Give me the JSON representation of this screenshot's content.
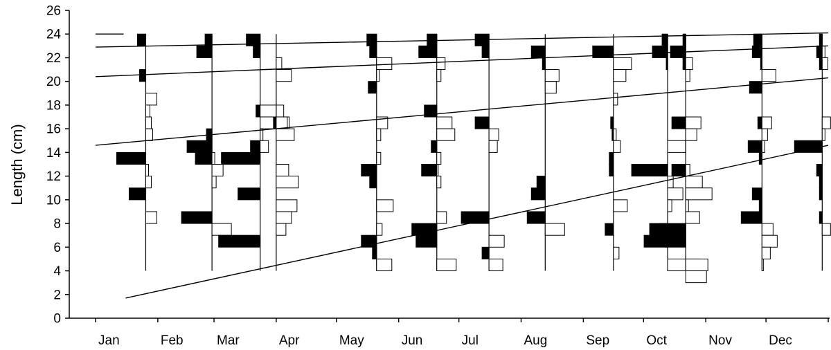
{
  "chart_data": {
    "type": "bar",
    "description_of_bars": "length-frequency histograms; black bars left of each sample baseline, white bars right",
    "ylabel": "Length (cm)",
    "xlabel": "",
    "ylim": [
      0,
      26
    ],
    "yticks": [
      "0",
      "2",
      "4",
      "6",
      "8",
      "10",
      "12",
      "14",
      "16",
      "18",
      "20",
      "22",
      "24",
      "26"
    ],
    "months": [
      "Jan",
      "Feb",
      "Mar",
      "Apr",
      "May",
      "Jun",
      "Jul",
      "Aug",
      "Sep",
      "Oct",
      "Nov",
      "Dec"
    ],
    "colors": {
      "filled_bars": "#000000",
      "open_bars": "#ffffff",
      "lines": "#000000"
    },
    "samples": [
      {
        "day": 25,
        "black": [
          [
            23.5,
            12
          ],
          [
            20.5,
            9
          ],
          [
            13.5,
            42
          ],
          [
            10.5,
            24
          ]
        ],
        "white": [
          [
            18.5,
            16
          ],
          [
            17.5,
            6
          ],
          [
            16.5,
            8
          ],
          [
            15.5,
            10
          ],
          [
            12.5,
            4
          ],
          [
            11.5,
            8
          ],
          [
            8.5,
            16
          ]
        ]
      },
      {
        "day": 58,
        "black": [
          [
            23.5,
            10
          ],
          [
            22.5,
            22
          ],
          [
            15.5,
            8
          ],
          [
            14.5,
            36
          ],
          [
            13.5,
            24
          ],
          [
            8.5,
            44
          ]
        ],
        "white": [
          [
            13.5,
            4
          ],
          [
            12.5,
            16
          ],
          [
            11.5,
            6
          ],
          [
            7.5,
            28
          ]
        ]
      },
      {
        "day": 82,
        "black": [
          [
            23.5,
            20
          ],
          [
            22.5,
            10
          ],
          [
            17.5,
            6
          ],
          [
            14.5,
            14
          ],
          [
            13.5,
            56
          ],
          [
            10.5,
            32
          ],
          [
            6.5,
            60
          ]
        ],
        "white": [
          [
            17.5,
            34
          ],
          [
            16.5,
            42
          ],
          [
            15.5,
            4
          ],
          [
            14.5,
            12
          ]
        ]
      },
      {
        "day": 90,
        "black": [
          [
            16.5,
            4
          ]
        ],
        "white": [
          [
            21.5,
            8
          ],
          [
            20.5,
            22
          ],
          [
            16.5,
            16
          ],
          [
            15.5,
            26
          ],
          [
            12.5,
            18
          ],
          [
            11.5,
            32
          ],
          [
            9.5,
            30
          ],
          [
            8.5,
            22
          ],
          [
            7.5,
            14
          ]
        ]
      },
      {
        "day": 140,
        "black": [
          [
            23.5,
            14
          ],
          [
            22.5,
            10
          ],
          [
            19.5,
            12
          ],
          [
            12.5,
            22
          ],
          [
            11.5,
            10
          ],
          [
            6.5,
            22
          ],
          [
            5.5,
            6
          ]
        ],
        "white": [
          [
            21.5,
            22
          ],
          [
            20.5,
            4
          ],
          [
            16.5,
            16
          ],
          [
            15.5,
            6
          ],
          [
            13.5,
            6
          ],
          [
            9.5,
            24
          ],
          [
            7.5,
            8
          ],
          [
            4.5,
            22
          ]
        ]
      },
      {
        "day": 170,
        "black": [
          [
            23.5,
            14
          ],
          [
            22.5,
            26
          ],
          [
            17.5,
            18
          ],
          [
            14.5,
            8
          ],
          [
            12.5,
            22
          ],
          [
            7.5,
            36
          ],
          [
            6.5,
            30
          ]
        ],
        "white": [
          [
            21.5,
            12
          ],
          [
            20.5,
            6
          ],
          [
            16.5,
            22
          ],
          [
            15.5,
            26
          ],
          [
            13.5,
            6
          ],
          [
            12.5,
            2
          ],
          [
            11.5,
            6
          ],
          [
            8.5,
            14
          ],
          [
            4.5,
            28
          ]
        ]
      },
      {
        "day": 196,
        "black": [
          [
            23.5,
            20
          ],
          [
            22.5,
            10
          ],
          [
            16.5,
            20
          ],
          [
            8.5,
            40
          ],
          [
            5.5,
            10
          ]
        ],
        "white": [
          [
            15.5,
            14
          ],
          [
            14.5,
            12
          ],
          [
            6.5,
            22
          ],
          [
            4.5,
            20
          ]
        ]
      },
      {
        "day": 224,
        "black": [
          [
            22.5,
            20
          ],
          [
            21.5,
            4
          ],
          [
            11.5,
            12
          ],
          [
            10.5,
            20
          ],
          [
            8.5,
            26
          ]
        ],
        "white": [
          [
            20.5,
            20
          ],
          [
            19.5,
            16
          ],
          [
            7.5,
            28
          ]
        ]
      },
      {
        "day": 258,
        "black": [
          [
            22.5,
            30
          ],
          [
            16.5,
            4
          ],
          [
            15.5,
            2
          ],
          [
            13.5,
            6
          ],
          [
            12.5,
            6
          ],
          [
            7.5,
            12
          ]
        ],
        "white": [
          [
            21.5,
            26
          ],
          [
            20.5,
            18
          ],
          [
            18.5,
            6
          ],
          [
            15.5,
            4
          ],
          [
            14.5,
            10
          ],
          [
            9.5,
            20
          ],
          [
            5.5,
            8
          ]
        ]
      },
      {
        "day": 285,
        "black": [
          [
            23.5,
            8
          ],
          [
            22.5,
            22
          ],
          [
            21.5,
            2
          ],
          [
            12.5,
            52
          ],
          [
            7.5,
            26
          ],
          [
            6.5,
            34
          ]
        ],
        "white": [
          [
            14.5,
            26
          ],
          [
            11.5,
            8
          ],
          [
            10.5,
            22
          ],
          [
            9.5,
            6
          ],
          [
            4.5,
            46
          ]
        ]
      },
      {
        "day": 294,
        "black": [
          [
            23.5,
            4
          ],
          [
            22.5,
            22
          ],
          [
            21.5,
            4
          ],
          [
            16.5,
            20
          ],
          [
            12.5,
            20
          ],
          [
            7.5,
            38
          ],
          [
            6.5,
            30
          ]
        ],
        "white": [
          [
            21.5,
            10
          ],
          [
            20.5,
            6
          ],
          [
            16.5,
            22
          ],
          [
            15.5,
            16
          ],
          [
            12.5,
            6
          ],
          [
            11.5,
            24
          ],
          [
            10.5,
            38
          ],
          [
            9.5,
            4
          ],
          [
            8.5,
            20
          ],
          [
            4.5,
            32
          ],
          [
            3.5,
            30
          ]
        ]
      },
      {
        "day": 332,
        "black": [
          [
            23.5,
            12
          ],
          [
            22.5,
            14
          ],
          [
            21.5,
            2
          ],
          [
            19.5,
            18
          ],
          [
            16.5,
            6
          ],
          [
            14.5,
            20
          ],
          [
            13.5,
            4
          ],
          [
            10.5,
            14
          ],
          [
            9.5,
            4
          ],
          [
            8.5,
            30
          ]
        ],
        "white": [
          [
            20.5,
            20
          ],
          [
            16.5,
            14
          ],
          [
            15.5,
            8
          ],
          [
            14.5,
            4
          ],
          [
            7.5,
            16
          ],
          [
            6.5,
            22
          ],
          [
            5.5,
            12
          ],
          [
            4.5,
            2
          ]
        ]
      },
      {
        "day": 362,
        "black": [
          [
            23.5,
            4
          ],
          [
            22.5,
            8
          ],
          [
            21.5,
            4
          ],
          [
            14.5,
            40
          ],
          [
            12.5,
            8
          ],
          [
            11.5,
            4
          ],
          [
            10.5,
            4
          ],
          [
            8.5,
            4
          ]
        ],
        "white": [
          [
            22.5,
            4
          ],
          [
            21.5,
            8
          ],
          [
            16.5,
            12
          ],
          [
            15.5,
            4
          ],
          [
            7.5,
            12
          ]
        ]
      }
    ],
    "growth_lines": [
      {
        "points": [
          [
            0,
            24.0
          ],
          [
            14,
            24.0
          ]
        ]
      },
      {
        "points": [
          [
            0,
            22.9
          ],
          [
            365,
            24.1
          ]
        ]
      },
      {
        "points": [
          [
            0,
            20.4
          ],
          [
            365,
            23.0
          ]
        ]
      },
      {
        "points": [
          [
            0,
            14.6
          ],
          [
            365,
            20.3
          ]
        ]
      },
      {
        "points": [
          [
            15,
            1.7
          ],
          [
            365,
            14.6
          ]
        ]
      }
    ]
  }
}
